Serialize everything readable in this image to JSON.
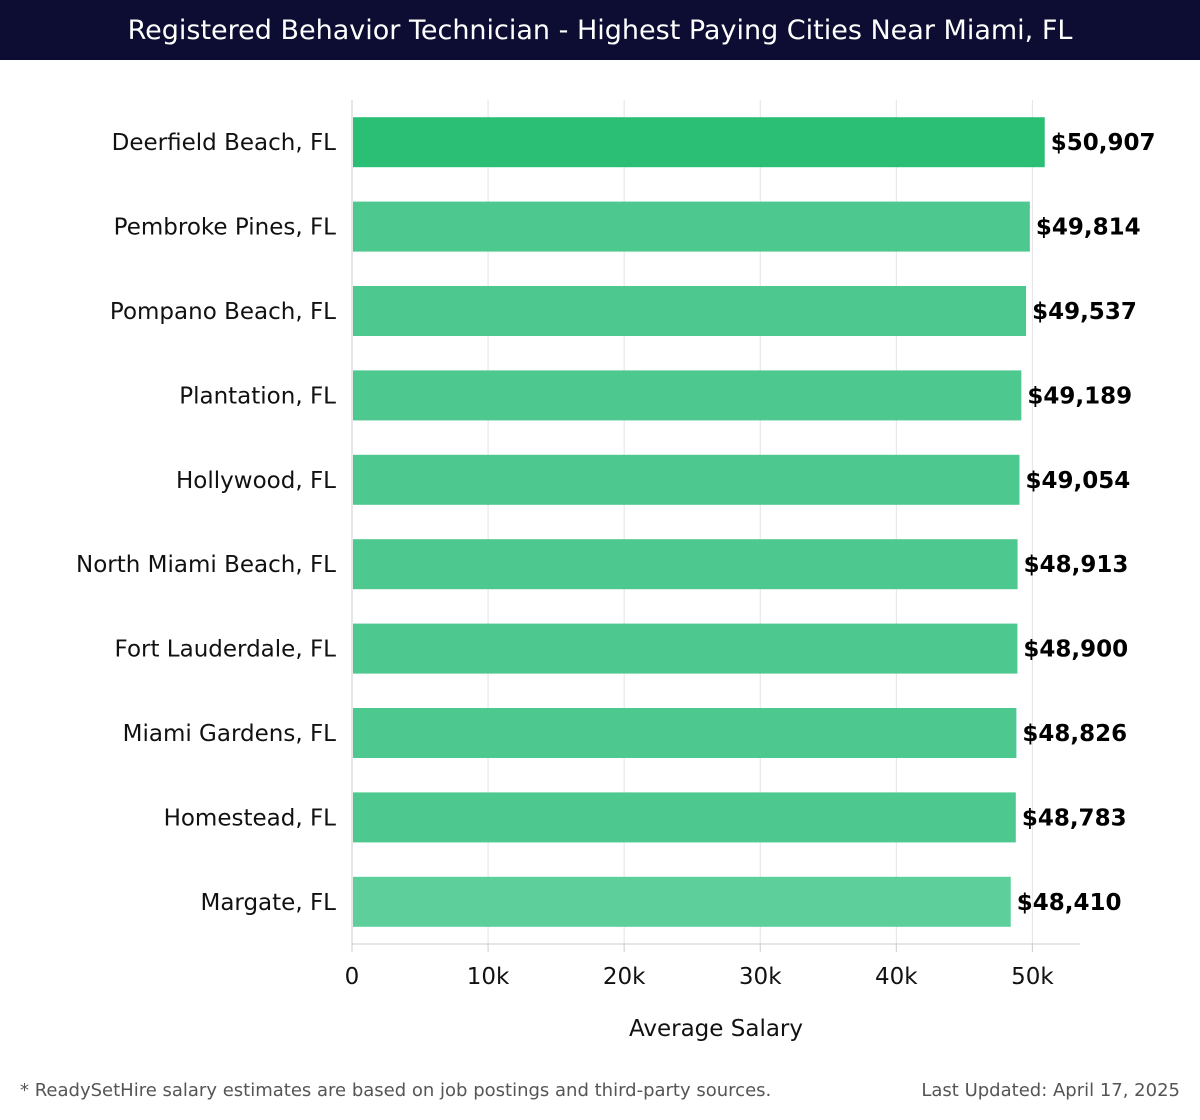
{
  "chart_data": {
    "type": "bar",
    "orientation": "horizontal",
    "title": "Registered Behavior Technician - Highest Paying Cities Near Miami, FL",
    "categories": [
      "Deerfield Beach, FL",
      "Pembroke Pines, FL",
      "Pompano Beach, FL",
      "Plantation, FL",
      "Hollywood, FL",
      "North Miami Beach, FL",
      "Fort Lauderdale, FL",
      "Miami Gardens, FL",
      "Homestead, FL",
      "Margate, FL"
    ],
    "values": [
      50907,
      49814,
      49537,
      49189,
      49054,
      48913,
      48900,
      48826,
      48783,
      48410
    ],
    "value_labels": [
      "$50,907",
      "$49,814",
      "$49,537",
      "$49,189",
      "$49,054",
      "$48,913",
      "$48,900",
      "$48,826",
      "$48,783",
      "$48,410"
    ],
    "xlabel": "Average Salary",
    "ylabel": "",
    "xlim": [
      0,
      53500
    ],
    "x_ticks": [
      0,
      10000,
      20000,
      30000,
      40000,
      50000
    ],
    "x_tick_labels": [
      "0",
      "10k",
      "20k",
      "30k",
      "40k",
      "50k"
    ],
    "grid": true,
    "colors": {
      "top_bar": "#2bbf76",
      "bars": "#4dc98f",
      "last_bar": "#5ccf9b"
    }
  },
  "footer": {
    "note": "* ReadySetHire salary estimates are based on job postings and third-party sources.",
    "updated": "Last Updated: April 17, 2025"
  }
}
